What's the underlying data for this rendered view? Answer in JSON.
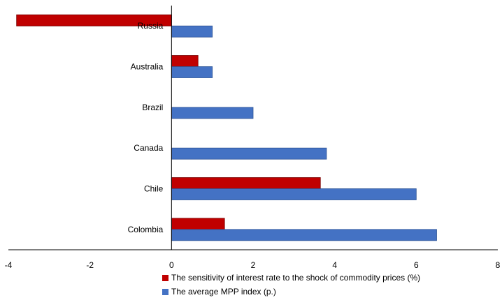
{
  "chart_data": {
    "type": "bar",
    "orientation": "horizontal",
    "categories": [
      "Russia",
      "Australia",
      "Brazil",
      "Canada",
      "Chile",
      "Colombia"
    ],
    "series": [
      {
        "name": "The sensitivity of interest rate to the shock of commodity prices (%)",
        "color": "#C00000",
        "values": [
          -3.8,
          0.65,
          null,
          null,
          3.65,
          1.3
        ]
      },
      {
        "name": "The average MPP index (p.)",
        "color": "#4472C4",
        "values": [
          1.0,
          1.0,
          2.0,
          3.8,
          6.0,
          6.5
        ]
      }
    ],
    "xlim": [
      -4,
      8
    ],
    "xticks": [
      "-4",
      "-2",
      "0",
      "2",
      "4",
      "6",
      "8"
    ],
    "title": "",
    "xlabel": "",
    "ylabel": "",
    "grid": false,
    "legend": "bottom"
  }
}
